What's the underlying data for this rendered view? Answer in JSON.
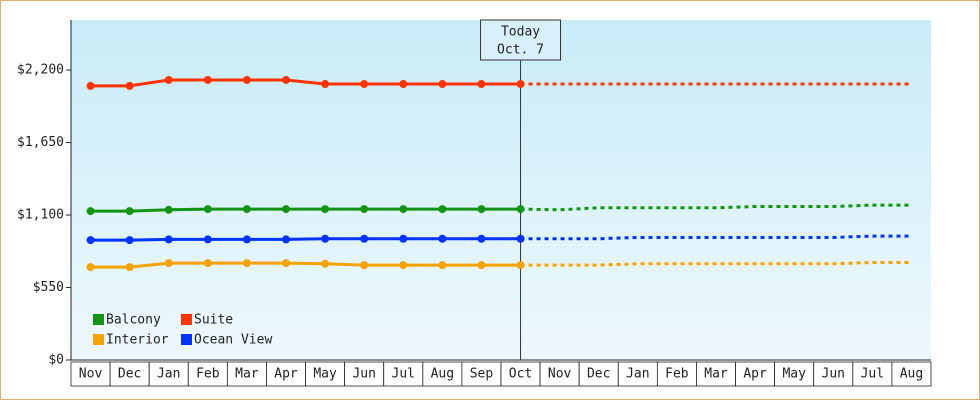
{
  "chart_data": {
    "type": "line",
    "categories": [
      "Nov",
      "Dec",
      "Jan",
      "Feb",
      "Mar",
      "Apr",
      "May",
      "Jun",
      "Jul",
      "Aug",
      "Sep",
      "Oct",
      "Nov",
      "Dec",
      "Jan",
      "Feb",
      "Mar",
      "Apr",
      "May",
      "Jun",
      "Jul",
      "Aug"
    ],
    "series": [
      {
        "name": "Balcony",
        "color": "#149414",
        "values": [
          1130,
          1130,
          1140,
          1145,
          1145,
          1145,
          1145,
          1145,
          1145,
          1145,
          1145,
          1145,
          1140,
          1155,
          1155,
          1155,
          1155,
          1165,
          1165,
          1165,
          1175,
          1175
        ]
      },
      {
        "name": "Suite",
        "color": "#ff3300",
        "values": [
          2080,
          2080,
          2125,
          2125,
          2125,
          2125,
          2094,
          2094,
          2094,
          2094,
          2094,
          2094,
          2094,
          2094,
          2094,
          2094,
          2094,
          2094,
          2094,
          2094,
          2094,
          2094
        ]
      },
      {
        "name": "Interior",
        "color": "#f5a300",
        "values": [
          705,
          705,
          735,
          735,
          735,
          735,
          730,
          720,
          720,
          720,
          720,
          720,
          720,
          720,
          730,
          730,
          730,
          730,
          730,
          730,
          740,
          740
        ]
      },
      {
        "name": "Ocean View",
        "color": "#0033ff",
        "values": [
          910,
          910,
          915,
          915,
          915,
          915,
          920,
          920,
          920,
          920,
          920,
          920,
          920,
          920,
          930,
          930,
          930,
          930,
          930,
          930,
          940,
          940
        ]
      }
    ],
    "ylim": [
      0,
      2580
    ],
    "yticks": [
      {
        "value": 0,
        "label": "$0"
      },
      {
        "value": 550,
        "label": "$550"
      },
      {
        "value": 1100,
        "label": "$1,100"
      },
      {
        "value": 1650,
        "label": "$1,650"
      },
      {
        "value": 2200,
        "label": "$2,200"
      }
    ],
    "marker": {
      "line1": "Today",
      "line2": "Oct. 7",
      "category": "Oct"
    },
    "legend": "bottom-left"
  }
}
